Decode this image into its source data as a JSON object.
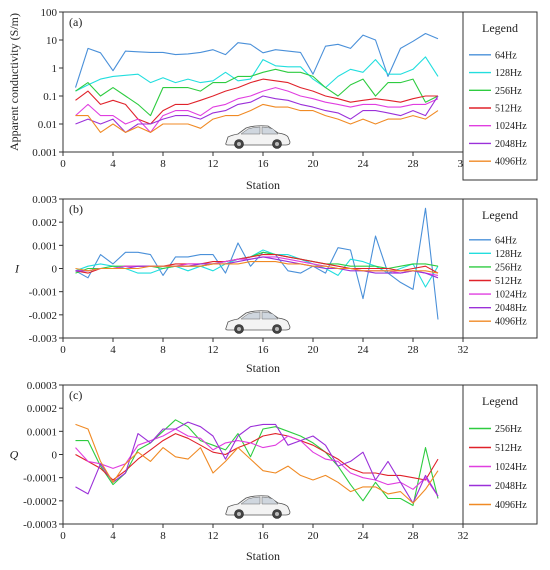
{
  "chart_data": [
    {
      "type": "line",
      "panel_label": "(a)",
      "xlabel": "Station",
      "ylabel": "Apparent conductivity (S/m)",
      "yscale": "log",
      "xlim": [
        0,
        32
      ],
      "ylim": [
        0.001,
        100
      ],
      "x_ticks": [
        0,
        4,
        8,
        12,
        16,
        20,
        24,
        28,
        32
      ],
      "y_ticks": [
        0.001,
        0.01,
        0.1,
        1,
        10,
        100
      ],
      "y_tick_labels": [
        "0.001",
        "0.01",
        "0.1",
        "1",
        "10",
        "100"
      ],
      "legend_title": "Legend",
      "legend_position": "right",
      "x": [
        1,
        2,
        3,
        4,
        5,
        6,
        7,
        8,
        9,
        10,
        11,
        12,
        13,
        14,
        15,
        16,
        17,
        18,
        19,
        20,
        21,
        22,
        23,
        24,
        25,
        26,
        27,
        28,
        29,
        30
      ],
      "series": [
        {
          "name": "64Hz",
          "color": "#4a90d9",
          "values": [
            0.2,
            5,
            3.5,
            0.8,
            4,
            3.8,
            3.6,
            3.6,
            3,
            3.2,
            3.6,
            4.5,
            3,
            8,
            7,
            3.5,
            4.5,
            4,
            3.6,
            0.6,
            6,
            7,
            5,
            15,
            10,
            0.5,
            5,
            9,
            17,
            11
          ]
        },
        {
          "name": "128Hz",
          "color": "#22dede",
          "values": [
            0.15,
            0.25,
            0.4,
            0.5,
            0.55,
            0.6,
            0.3,
            0.45,
            0.3,
            0.4,
            0.3,
            0.35,
            0.7,
            0.35,
            0.4,
            2,
            1.2,
            1.1,
            1.1,
            0.4,
            0.2,
            0.5,
            0.9,
            0.7,
            2,
            0.6,
            0.6,
            0.9,
            2.5,
            0.5
          ]
        },
        {
          "name": "256Hz",
          "color": "#2ecc40",
          "values": [
            0.15,
            0.3,
            0.1,
            0.2,
            0.1,
            0.05,
            0.02,
            0.2,
            0.2,
            0.2,
            0.15,
            0.3,
            0.3,
            0.5,
            0.5,
            0.7,
            0.9,
            0.7,
            0.7,
            0.5,
            0.2,
            0.1,
            0.25,
            0.4,
            0.1,
            0.3,
            0.3,
            0.4,
            0.06,
            0.1
          ]
        },
        {
          "name": "512Hz",
          "color": "#e0222a",
          "values": [
            0.07,
            0.15,
            0.05,
            0.07,
            0.05,
            0.015,
            0.01,
            0.03,
            0.05,
            0.05,
            0.07,
            0.1,
            0.15,
            0.2,
            0.3,
            0.4,
            0.35,
            0.3,
            0.2,
            0.15,
            0.1,
            0.08,
            0.06,
            0.07,
            0.08,
            0.07,
            0.06,
            0.08,
            0.1,
            0.1
          ]
        },
        {
          "name": "1024Hz",
          "color": "#e03ee0",
          "values": [
            0.02,
            0.05,
            0.02,
            0.02,
            0.01,
            0.015,
            0.005,
            0.02,
            0.03,
            0.03,
            0.02,
            0.04,
            0.05,
            0.08,
            0.1,
            0.15,
            0.2,
            0.15,
            0.1,
            0.08,
            0.06,
            0.05,
            0.04,
            0.05,
            0.05,
            0.04,
            0.04,
            0.05,
            0.05,
            0.08
          ]
        },
        {
          "name": "2048Hz",
          "color": "#9b30d9",
          "values": [
            0.01,
            0.015,
            0.01,
            0.015,
            0.005,
            0.01,
            0.01,
            0.015,
            0.02,
            0.02,
            0.015,
            0.025,
            0.03,
            0.05,
            0.06,
            0.1,
            0.08,
            0.07,
            0.05,
            0.04,
            0.03,
            0.025,
            0.015,
            0.03,
            0.03,
            0.025,
            0.02,
            0.03,
            0.02,
            0.1
          ]
        },
        {
          "name": "4096Hz",
          "color": "#f08a24",
          "values": [
            0.02,
            0.02,
            0.005,
            0.01,
            0.005,
            0.008,
            0.005,
            0.01,
            0.01,
            0.01,
            0.007,
            0.015,
            0.02,
            0.02,
            0.03,
            0.05,
            0.04,
            0.04,
            0.03,
            0.03,
            0.02,
            0.015,
            0.01,
            0.015,
            0.01,
            0.015,
            0.015,
            0.02,
            0.015,
            0.03
          ]
        }
      ]
    },
    {
      "type": "line",
      "panel_label": "(b)",
      "xlabel": "Station",
      "ylabel": "I",
      "yscale": "linear",
      "xlim": [
        0,
        32
      ],
      "ylim": [
        -0.003,
        0.003
      ],
      "x_ticks": [
        0,
        4,
        8,
        12,
        16,
        20,
        24,
        28,
        32
      ],
      "y_ticks": [
        -0.003,
        -0.002,
        -0.001,
        0,
        0.001,
        0.002,
        0.003
      ],
      "y_tick_labels": [
        "-0.003",
        "-0.002",
        "-0.001",
        "0",
        "0.001",
        "0.002",
        "0.003"
      ],
      "legend_title": "Legend",
      "legend_position": "right",
      "x": [
        1,
        2,
        3,
        4,
        5,
        6,
        7,
        8,
        9,
        10,
        11,
        12,
        13,
        14,
        15,
        16,
        17,
        18,
        19,
        20,
        21,
        22,
        23,
        24,
        25,
        26,
        27,
        28,
        29,
        30
      ],
      "series": [
        {
          "name": "64Hz",
          "color": "#4a90d9",
          "values": [
            -0.0001,
            -0.0004,
            0.0006,
            0.0002,
            0.0007,
            0.0007,
            0.0006,
            -0.0003,
            0.0005,
            0.0005,
            0.0006,
            0.0006,
            -0.0002,
            0.0011,
            0.0001,
            0.0007,
            0.0006,
            -0.0001,
            -0.0002,
            0.0001,
            -0.0002,
            0.0009,
            0.0008,
            -0.0013,
            0.0014,
            -0.0002,
            -0.0006,
            -0.0009,
            0.0026,
            -0.0022
          ]
        },
        {
          "name": "128Hz",
          "color": "#22dede",
          "values": [
            -0.0001,
            0.0001,
            0.0002,
            0.0001,
            0,
            -0.0002,
            -0.0002,
            0,
            0.0001,
            -0.0001,
            0.0001,
            -0.0001,
            0.0002,
            0.0004,
            0.0005,
            0.0008,
            0.0006,
            0.0006,
            0.0004,
            0.0002,
            0,
            -0.0003,
            0.0004,
            0.0003,
            0.0001,
            -0.0002,
            0,
            0.0002,
            -0.0008,
            0.0001
          ]
        },
        {
          "name": "256Hz",
          "color": "#2ecc40",
          "values": [
            -0.0002,
            0,
            0,
            0.0001,
            0.0001,
            0.0001,
            0.0001,
            0,
            0.0001,
            0.0001,
            0.0001,
            0.0002,
            0.0003,
            0.0004,
            0.0005,
            0.0007,
            0.0006,
            0.0005,
            0.0004,
            0.0003,
            0.0002,
            0.0002,
            0.0001,
            0.0001,
            0.0001,
            0,
            0.0001,
            0.0002,
            0.0002,
            0.0001
          ]
        },
        {
          "name": "512Hz",
          "color": "#e0222a",
          "values": [
            -0.0001,
            -0.0002,
            0,
            0,
            0.0001,
            0.0001,
            0.0001,
            0.0001,
            0.0002,
            0.0002,
            0.0002,
            0.0003,
            0.0003,
            0.0004,
            0.0005,
            0.0006,
            0.0006,
            0.0005,
            0.0004,
            0.0003,
            0.0002,
            0.0001,
            0,
            0,
            0,
            0,
            -0.0001,
            0,
            0.0001,
            -0.0002
          ]
        },
        {
          "name": "1024Hz",
          "color": "#e03ee0",
          "values": [
            -0.0001,
            -0.0001,
            0,
            0,
            0.0001,
            0.0001,
            0.0001,
            0.0001,
            0.0001,
            0.0002,
            0.0002,
            0.0002,
            0.0003,
            0.0004,
            0.0004,
            0.0005,
            0.0005,
            0.0004,
            0.0003,
            0.0002,
            0.0001,
            0,
            0,
            -0.0001,
            -0.0001,
            -0.0001,
            -0.0002,
            -0.0001,
            -0.0002,
            -0.0003
          ]
        },
        {
          "name": "2048Hz",
          "color": "#9b30d9",
          "values": [
            -0.0001,
            -0.0001,
            0,
            0,
            0,
            0.0001,
            0.0001,
            0.0001,
            0.0001,
            0.0001,
            0.0002,
            0.0002,
            0.0002,
            0.0003,
            0.0004,
            0.0005,
            0.0004,
            0.0003,
            0.0002,
            0.0001,
            0,
            0,
            -0.0001,
            -0.0001,
            -0.0002,
            -0.0002,
            -0.0002,
            -0.0001,
            -0.0002,
            -0.0004
          ]
        },
        {
          "name": "4096Hz",
          "color": "#f08a24",
          "values": [
            0,
            -0.0001,
            0,
            0,
            0,
            0,
            0.0001,
            0.0001,
            0.0001,
            0.0001,
            0.0001,
            0.0002,
            0.0002,
            0.0002,
            0.0003,
            0.0003,
            0.0003,
            0.0002,
            0.0002,
            0.0001,
            0.0001,
            0,
            0,
            -0.0001,
            -0.0001,
            -0.0001,
            -0.0001,
            -0.0001,
            -0.0001,
            -0.0002
          ]
        }
      ]
    },
    {
      "type": "line",
      "panel_label": "(c)",
      "xlabel": "Station",
      "ylabel": "Q",
      "yscale": "linear",
      "xlim": [
        0,
        32
      ],
      "ylim": [
        -0.0003,
        0.0003
      ],
      "x_ticks": [
        0,
        4,
        8,
        12,
        16,
        20,
        24,
        28,
        32
      ],
      "y_ticks": [
        -0.0003,
        -0.0002,
        -0.0001,
        0,
        0.0001,
        0.0002,
        0.0003
      ],
      "y_tick_labels": [
        "-0.0003",
        "-0.0002",
        "-0.0001",
        "0",
        "0.0001",
        "0.0002",
        "0.0003"
      ],
      "legend_title": "Legend",
      "legend_position": "right",
      "x": [
        1,
        2,
        3,
        4,
        5,
        6,
        7,
        8,
        9,
        10,
        11,
        12,
        13,
        14,
        15,
        16,
        17,
        18,
        19,
        20,
        21,
        22,
        23,
        24,
        25,
        26,
        27,
        28,
        29,
        30
      ],
      "series": [
        {
          "name": "256Hz",
          "color": "#2ecc40",
          "values": [
            6e-05,
            6e-05,
            -5e-05,
            -0.00013,
            -8e-05,
            2e-05,
            5e-05,
            0.0001,
            0.00015,
            0.00012,
            6e-05,
            4e-05,
            2e-05,
            9e-05,
            -1e-05,
            0.00011,
            0.00012,
            0.0001,
            8e-05,
            5e-05,
            1e-05,
            -5e-05,
            -0.00013,
            -0.0002,
            -0.00012,
            -0.00019,
            -0.00019,
            -0.00022,
            3e-05,
            -0.00019
          ]
        },
        {
          "name": "512Hz",
          "color": "#e0222a",
          "values": [
            0,
            -3e-05,
            -6e-05,
            -0.00011,
            -7e-05,
            -2e-05,
            2e-05,
            6e-05,
            9e-05,
            7e-05,
            4e-05,
            1e-05,
            0,
            3e-05,
            5e-05,
            8e-05,
            9e-05,
            8e-05,
            6e-05,
            4e-05,
            1e-05,
            -2e-05,
            -6e-05,
            -8e-05,
            -8e-05,
            -9e-05,
            -9e-05,
            -0.0001,
            -0.00011,
            -2e-05
          ]
        },
        {
          "name": "1024Hz",
          "color": "#e03ee0",
          "values": [
            3e-05,
            -3e-05,
            -4e-05,
            -6e-05,
            -4e-05,
            4e-05,
            6e-05,
            8e-05,
            0.00011,
            8e-05,
            7e-05,
            2e-05,
            5e-05,
            6e-05,
            5e-05,
            3e-05,
            4e-05,
            8e-05,
            6e-05,
            1e-05,
            -2e-05,
            -3e-05,
            -8e-05,
            -0.0001,
            -0.00011,
            -0.00013,
            -0.00012,
            -0.00015,
            -0.0001,
            -0.00018
          ]
        },
        {
          "name": "2048Hz",
          "color": "#9b30d9",
          "values": [
            -0.00014,
            -0.00017,
            -4e-05,
            -0.00012,
            -8e-05,
            9e-05,
            5e-05,
            0.00011,
            0.00011,
            0.00014,
            0.00012,
            8e-05,
            -2e-05,
            8e-05,
            0.00012,
            0.00013,
            0.00013,
            4e-05,
            6e-05,
            8e-05,
            4e-05,
            -5e-05,
            -3e-05,
            1e-05,
            -0.00011,
            -3e-05,
            -0.00012,
            -0.00021,
            -9e-05,
            -0.00018
          ]
        },
        {
          "name": "4096Hz",
          "color": "#f08a24",
          "values": [
            0.00013,
            0.00011,
            -3e-05,
            -0.00012,
            -4e-05,
            1e-05,
            -3e-05,
            3e-05,
            -1e-05,
            -2e-05,
            3e-05,
            -8e-05,
            -3e-05,
            3e-05,
            -2e-05,
            -7e-05,
            -8e-05,
            -5e-05,
            -9e-05,
            -0.00011,
            -9e-05,
            -0.00012,
            -0.00016,
            -0.00014,
            -0.00014,
            -0.00017,
            -0.00016,
            -0.00021,
            -0.00015,
            -7e-05
          ]
        }
      ]
    }
  ]
}
